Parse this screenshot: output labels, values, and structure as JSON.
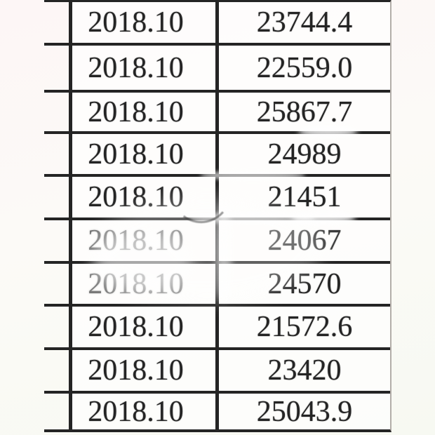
{
  "table": {
    "columns": {
      "left_empty": "",
      "date_header_hidden": "",
      "value_header_hidden": ""
    },
    "rows": [
      {
        "date": "2018.10",
        "value": "23744.4"
      },
      {
        "date": "2018.10",
        "value": "22559.0"
      },
      {
        "date": "2018.10",
        "value": "25867.7"
      },
      {
        "date": "2018.10",
        "value": "24989"
      },
      {
        "date": "2018.10",
        "value": "21451"
      },
      {
        "date": "2018.10",
        "value": "24067"
      },
      {
        "date": "2018.10",
        "value": "24570"
      },
      {
        "date": "2018.10",
        "value": "21572.6"
      },
      {
        "date": "2018.10",
        "value": "23420"
      },
      {
        "date": "2018.10",
        "value": "25043.9"
      }
    ]
  },
  "colors": {
    "border": "#242424",
    "text": "#242424",
    "background_top": "#fdf6f6",
    "background_bottom": "#f7f9f2",
    "right_edge_faint": "#b3aea9"
  }
}
